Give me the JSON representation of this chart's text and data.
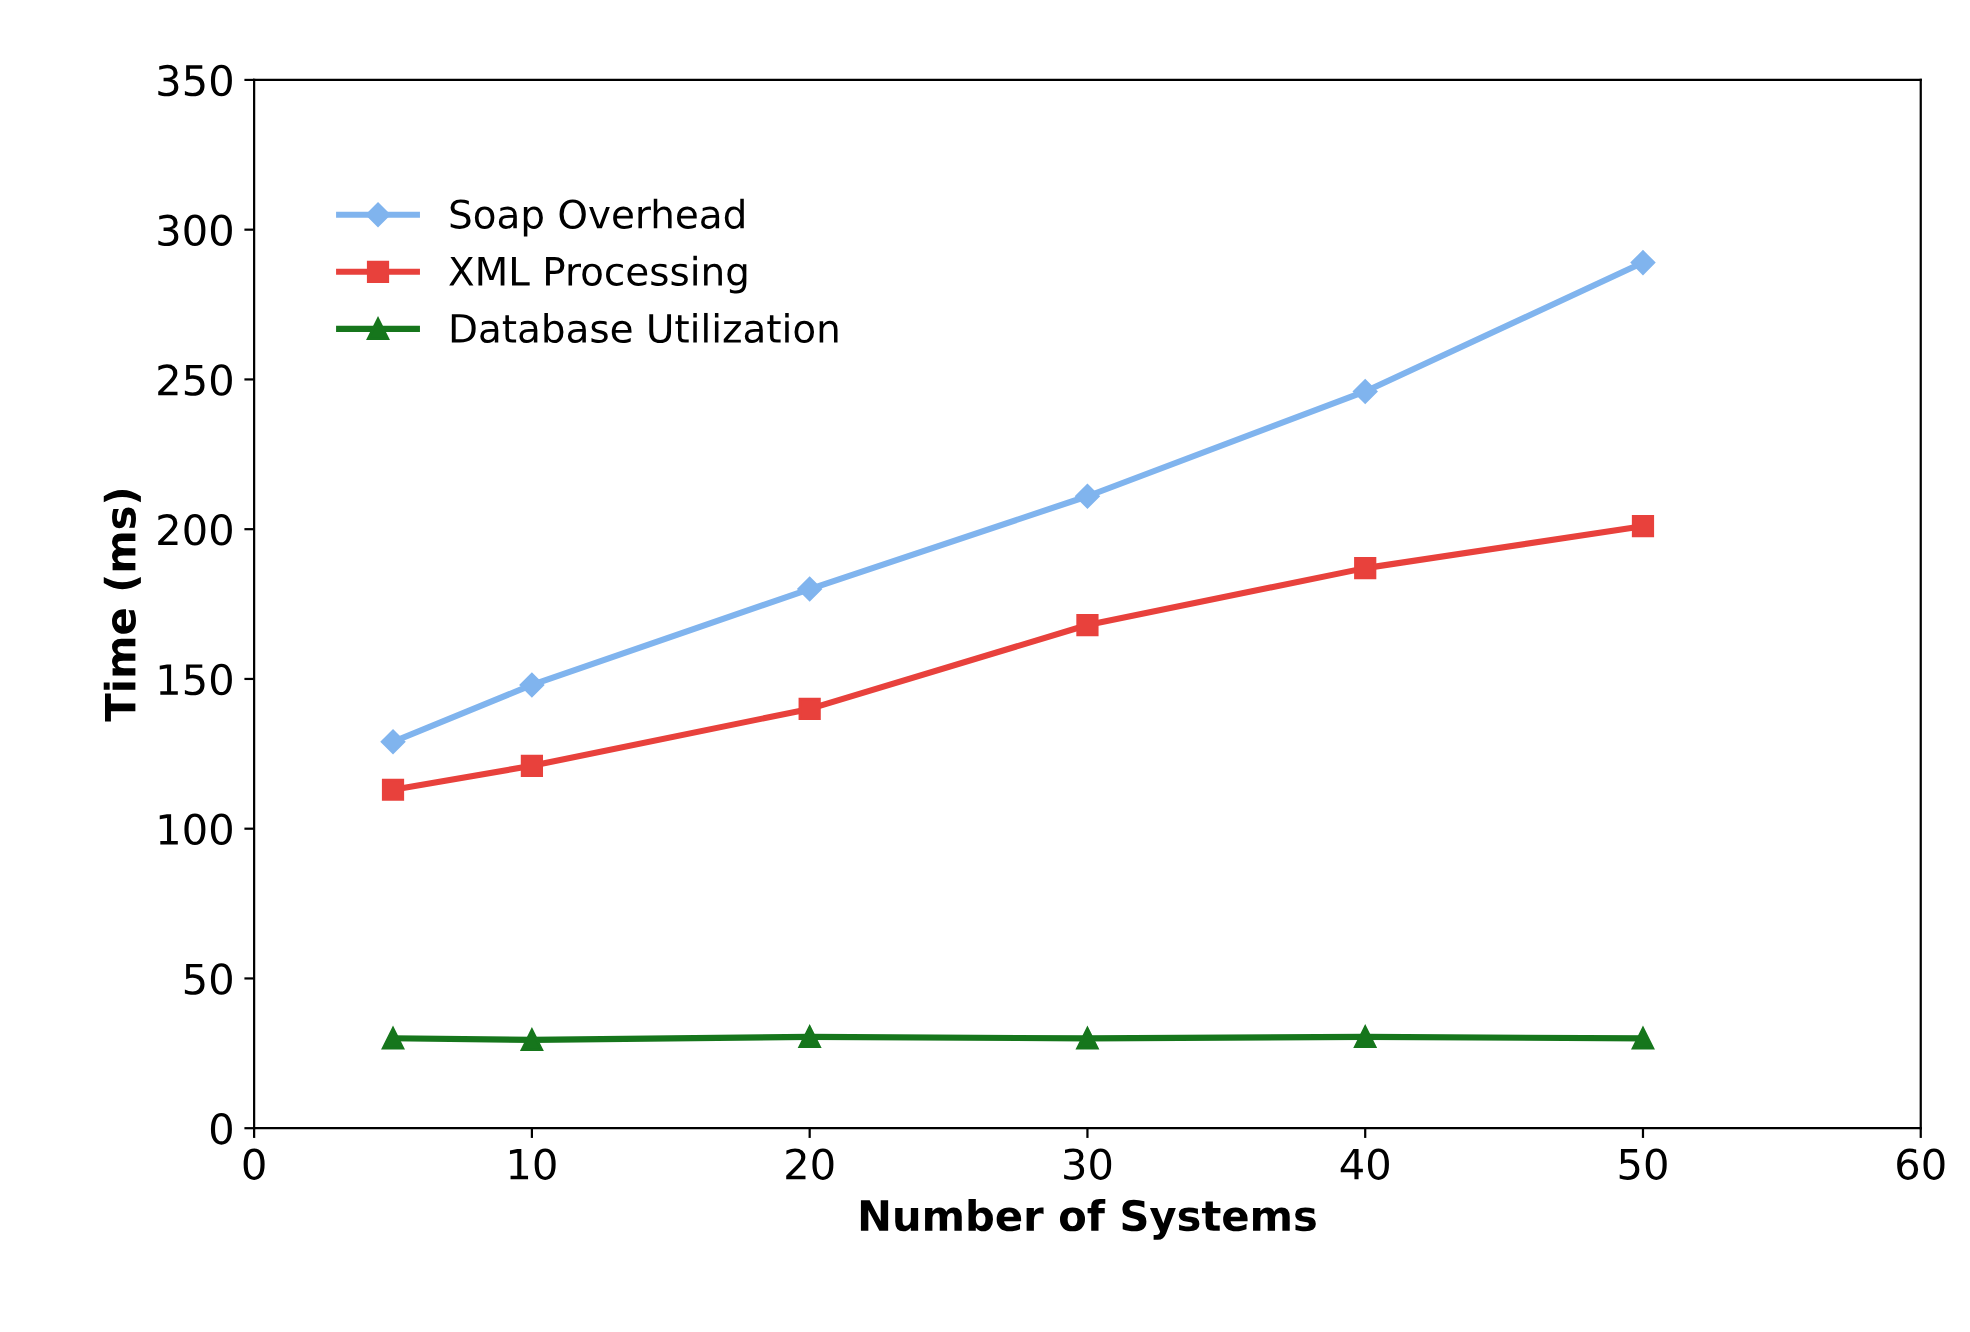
{
  "chart_data": {
    "type": "line",
    "xlabel": "Number of Systems",
    "ylabel": "Time (ms)",
    "x": [
      5,
      10,
      20,
      30,
      40,
      50
    ],
    "series": [
      {
        "name": "Soap Overhead",
        "color": "#80b4ee",
        "marker": "diamond",
        "values": [
          129,
          148,
          180,
          211,
          246,
          289
        ]
      },
      {
        "name": "XML Processing",
        "color": "#e8413c",
        "marker": "square",
        "values": [
          113,
          121,
          140,
          168,
          187,
          201
        ]
      },
      {
        "name": "Database Utilization",
        "color": "#16761c",
        "marker": "triangle",
        "values": [
          30,
          29.5,
          30.5,
          30,
          30.5,
          30
        ]
      }
    ],
    "xlim": [
      0,
      60
    ],
    "xticks": [
      0,
      10,
      20,
      30,
      40,
      50,
      60
    ],
    "ylim": [
      0,
      350
    ],
    "yticks": [
      0,
      50,
      100,
      150,
      200,
      250,
      300,
      350
    ],
    "grid": false,
    "legend": "top left",
    "line_style": "solid"
  }
}
